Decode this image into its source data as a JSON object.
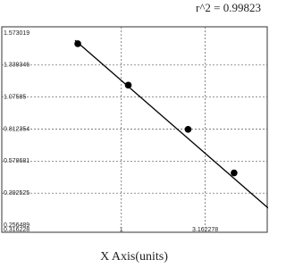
{
  "chart_data": {
    "type": "scatter",
    "annotation": "r^2  =  0.99823",
    "xlabel": "X Axis(units)",
    "xscale": "log",
    "xlim": [
      0.28,
      7.5
    ],
    "xticks": [
      0.316228,
      1,
      3.162278
    ],
    "ylim": [
      0.256489,
      1.573019
    ],
    "yticks": [
      1.573019,
      1.339346,
      1.07585,
      0.812354,
      0.578681,
      0.392525,
      0.256489
    ],
    "grid": true,
    "series": [
      {
        "color": "#000000",
        "marker": true,
        "line": false,
        "x": [
          0.55,
          1.1,
          2.5,
          4.7
        ],
        "values": [
          1.495,
          1.174,
          0.81,
          0.51
        ]
      },
      {
        "color": "#000000",
        "marker": false,
        "line": true,
        "x": [
          0.53,
          7.5
        ],
        "values": [
          1.52,
          0.329
        ]
      }
    ]
  }
}
